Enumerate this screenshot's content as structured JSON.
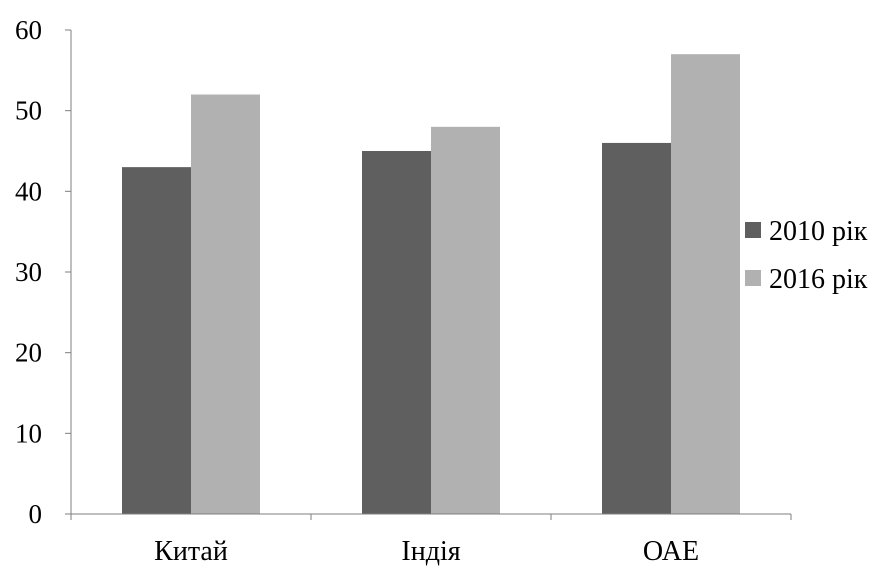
{
  "chart_data": {
    "type": "bar",
    "categories": [
      "Китай",
      "Індія",
      "ОАЕ"
    ],
    "series": [
      {
        "name": "2010 рік",
        "values": [
          43,
          45,
          46
        ],
        "color": "#5f5f5f"
      },
      {
        "name": "2016 рік",
        "values": [
          52,
          48,
          57
        ],
        "color": "#b1b1b1"
      }
    ],
    "y_ticks": [
      "0",
      "10",
      "20",
      "30",
      "40",
      "50",
      "60"
    ],
    "ylim": [
      0,
      60
    ],
    "grid": false,
    "legend_position": "right",
    "axis_color": "#7f7f7f"
  }
}
